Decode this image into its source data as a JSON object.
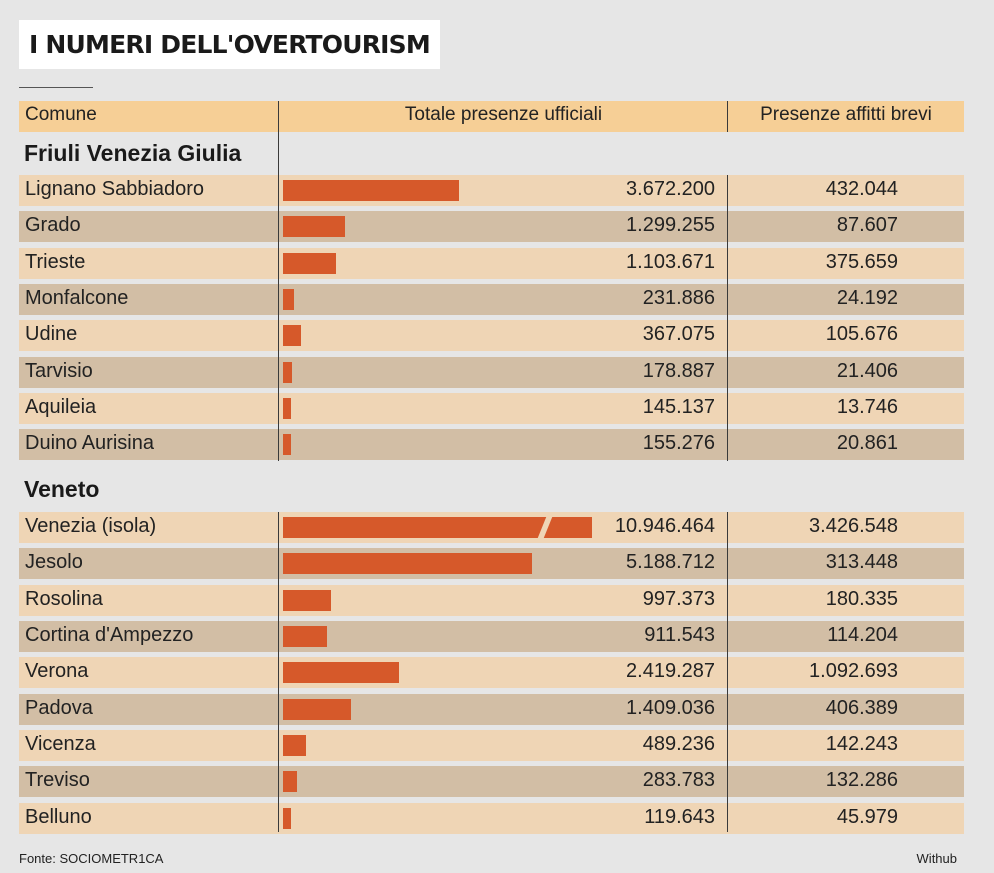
{
  "title": "I NUMERI DELL'OVERTOURISM",
  "header": {
    "comune": "Comune",
    "totale": "Totale presenze ufficiali",
    "brevi": "Presenze affitti brevi"
  },
  "colors": {
    "bar": "#d6592a",
    "header_bg": "#f6cf96",
    "row_light": "#efd5b5",
    "row_dark": "#d2bea5"
  },
  "chart_data": {
    "type": "table",
    "columns": [
      "Comune",
      "Totale presenze ufficiali",
      "Presenze affitti brevi"
    ],
    "groups": [
      {
        "name": "Friuli Venezia Giulia",
        "rows": [
          {
            "comune": "Lignano Sabbiadoro",
            "totale": "3.672.200",
            "brevi": "432.044",
            "value": 3672200
          },
          {
            "comune": "Grado",
            "totale": "1.299.255",
            "brevi": "87.607",
            "value": 1299255
          },
          {
            "comune": "Trieste",
            "totale": "1.103.671",
            "brevi": "375.659",
            "value": 1103671
          },
          {
            "comune": "Monfalcone",
            "totale": "231.886",
            "brevi": "24.192",
            "value": 231886
          },
          {
            "comune": "Udine",
            "totale": "367.075",
            "brevi": "105.676",
            "value": 367075
          },
          {
            "comune": "Tarvisio",
            "totale": "178.887",
            "brevi": "21.406",
            "value": 178887
          },
          {
            "comune": "Aquileia",
            "totale": "145.137",
            "brevi": "13.746",
            "value": 145137
          },
          {
            "comune": "Duino Aurisina",
            "totale": "155.276",
            "brevi": "20.861",
            "value": 155276
          }
        ]
      },
      {
        "name": "Veneto",
        "rows": [
          {
            "comune": "Venezia (isola)",
            "totale": "10.946.464",
            "brevi": "3.426.548",
            "value": 10946464,
            "broken": true
          },
          {
            "comune": "Jesolo",
            "totale": "5.188.712",
            "brevi": "313.448",
            "value": 5188712
          },
          {
            "comune": "Rosolina",
            "totale": "997.373",
            "brevi": "180.335",
            "value": 997373
          },
          {
            "comune": "Cortina d'Ampezzo",
            "totale": "911.543",
            "brevi": "114.204",
            "value": 911543
          },
          {
            "comune": "Verona",
            "totale": "2.419.287",
            "brevi": "1.092.693",
            "value": 2419287
          },
          {
            "comune": "Padova",
            "totale": "1.409.036",
            "brevi": "406.389",
            "value": 1409036
          },
          {
            "comune": "Vicenza",
            "totale": "489.236",
            "brevi": "142.243",
            "value": 489236
          },
          {
            "comune": "Treviso",
            "totale": "283.783",
            "brevi": "132.286",
            "value": 283783
          },
          {
            "comune": "Belluno",
            "totale": "119.643",
            "brevi": "45.979",
            "value": 119643
          }
        ]
      }
    ]
  },
  "footer": {
    "source": "Fonte: SOCIOMETR1CA",
    "credit": "Withub"
  }
}
